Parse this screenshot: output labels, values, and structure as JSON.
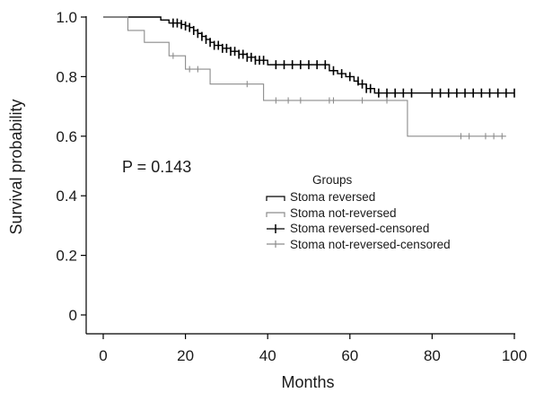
{
  "chart_data": {
    "type": "line",
    "xlabel": "Months",
    "ylabel": "Survival probability",
    "xlim": [
      0,
      100
    ],
    "ylim": [
      0,
      1.0
    ],
    "xticks": [
      "0",
      "20",
      "40",
      "60",
      "80",
      "100"
    ],
    "yticks": [
      "0",
      "0.2",
      "0.4",
      "0.6",
      "0.8",
      "1.0"
    ],
    "annotation": "P = 0.143",
    "legend": {
      "title": "Groups",
      "entries": [
        "Stoma reversed",
        "Stoma not-reversed",
        "Stoma reversed-censored",
        "Stoma not-reversed-censored"
      ]
    },
    "colors": {
      "reversed": "#000000",
      "not_reversed": "#8c8c8c"
    },
    "series": [
      {
        "name": "Stoma reversed",
        "x": [
          0,
          14,
          16,
          19,
          20,
          21,
          22,
          23,
          24,
          25,
          26,
          27,
          29,
          31,
          33,
          35,
          37,
          40,
          55,
          57,
          59,
          61,
          62,
          64,
          66,
          100
        ],
        "y": [
          1.0,
          0.99,
          0.98,
          0.975,
          0.97,
          0.965,
          0.955,
          0.945,
          0.935,
          0.925,
          0.915,
          0.905,
          0.895,
          0.885,
          0.875,
          0.865,
          0.855,
          0.84,
          0.82,
          0.81,
          0.8,
          0.785,
          0.775,
          0.76,
          0.745,
          0.745
        ],
        "censored_x": [
          17,
          18,
          19,
          20,
          21,
          22,
          23,
          24,
          25,
          26,
          27,
          28,
          29,
          30,
          31,
          32,
          33,
          34,
          35,
          36,
          37,
          38,
          39,
          42,
          44,
          46,
          48,
          50,
          52,
          54,
          56,
          58,
          60,
          62,
          63,
          64,
          65,
          67,
          69,
          71,
          73,
          75,
          80,
          82,
          84,
          86,
          88,
          90,
          92,
          94,
          96,
          98,
          100
        ],
        "censored_y": [
          0.98,
          0.98,
          0.975,
          0.97,
          0.965,
          0.955,
          0.945,
          0.935,
          0.925,
          0.915,
          0.905,
          0.905,
          0.895,
          0.895,
          0.885,
          0.885,
          0.875,
          0.875,
          0.865,
          0.865,
          0.855,
          0.855,
          0.855,
          0.84,
          0.84,
          0.84,
          0.84,
          0.84,
          0.84,
          0.84,
          0.82,
          0.81,
          0.8,
          0.785,
          0.775,
          0.76,
          0.76,
          0.745,
          0.745,
          0.745,
          0.745,
          0.745,
          0.745,
          0.745,
          0.745,
          0.745,
          0.745,
          0.745,
          0.745,
          0.745,
          0.745,
          0.745,
          0.745
        ]
      },
      {
        "name": "Stoma not-reversed",
        "x": [
          0,
          6,
          10,
          16,
          20,
          26,
          39,
          74,
          98
        ],
        "y": [
          1.0,
          0.955,
          0.915,
          0.87,
          0.825,
          0.775,
          0.72,
          0.6,
          0.6
        ],
        "censored_x": [
          17,
          21,
          23,
          35,
          42,
          45,
          48,
          55,
          56,
          63,
          69,
          87,
          89,
          93,
          95,
          97
        ],
        "censored_y": [
          0.87,
          0.825,
          0.825,
          0.775,
          0.72,
          0.72,
          0.72,
          0.72,
          0.72,
          0.72,
          0.72,
          0.6,
          0.6,
          0.6,
          0.6,
          0.6
        ]
      }
    ]
  }
}
